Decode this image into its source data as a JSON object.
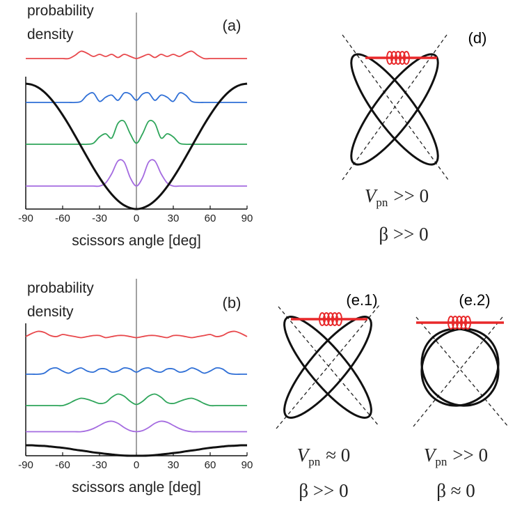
{
  "chart_data": [
    {
      "type": "line",
      "panel_label": "(a)",
      "ylabel": [
        "probability",
        "density"
      ],
      "xlabel": "scissors angle [deg]",
      "x": [
        -90,
        -85,
        -80,
        -75,
        -70,
        -65,
        -60,
        -55,
        -50,
        -45,
        -40,
        -35,
        -30,
        -25,
        -20,
        -15,
        -10,
        -5,
        0,
        5,
        10,
        15,
        20,
        25,
        30,
        35,
        40,
        45,
        50,
        55,
        60,
        65,
        70,
        75,
        80,
        85,
        90
      ],
      "xlim": [
        -90,
        90
      ],
      "xticks": [
        -90,
        -60,
        -30,
        0,
        30,
        60,
        90
      ],
      "ylim": [
        0,
        8
      ],
      "series": [
        {
          "color": "#e8474b",
          "values": [
            7.2,
            7.2,
            7.2,
            7.2,
            7.2,
            7.2,
            7.2,
            7.2,
            7.35,
            7.55,
            7.45,
            7.3,
            7.4,
            7.3,
            7.4,
            7.25,
            7.4,
            7.3,
            7.2,
            7.3,
            7.4,
            7.25,
            7.4,
            7.3,
            7.4,
            7.3,
            7.45,
            7.55,
            7.35,
            7.2,
            7.2,
            7.2,
            7.2,
            7.2,
            7.2,
            7.2,
            7.2
          ]
        },
        {
          "color": "#2f6fd6",
          "values": [
            5.1,
            5.1,
            5.1,
            5.1,
            5.1,
            5.1,
            5.1,
            5.1,
            5.1,
            5.15,
            5.45,
            5.55,
            5.15,
            5.35,
            5.45,
            5.2,
            5.55,
            5.5,
            5.2,
            5.5,
            5.55,
            5.2,
            5.45,
            5.35,
            5.15,
            5.55,
            5.45,
            5.15,
            5.1,
            5.1,
            5.1,
            5.1,
            5.1,
            5.1,
            5.1,
            5.1,
            5.1
          ]
        },
        {
          "color": "#2ea55a",
          "values": [
            3.1,
            3.1,
            3.1,
            3.1,
            3.1,
            3.1,
            3.1,
            3.1,
            3.1,
            3.1,
            3.1,
            3.15,
            3.45,
            3.6,
            3.4,
            4.1,
            4.2,
            3.6,
            3.15,
            3.6,
            4.2,
            4.1,
            3.4,
            3.6,
            3.45,
            3.15,
            3.1,
            3.1,
            3.1,
            3.1,
            3.1,
            3.1,
            3.1,
            3.1,
            3.1,
            3.1,
            3.1
          ]
        },
        {
          "color": "#a46be0",
          "values": [
            1.1,
            1.1,
            1.1,
            1.1,
            1.1,
            1.1,
            1.1,
            1.1,
            1.1,
            1.1,
            1.1,
            1.1,
            1.1,
            1.25,
            1.7,
            2.3,
            2.25,
            1.5,
            1.1,
            1.5,
            2.25,
            2.3,
            1.7,
            1.25,
            1.1,
            1.1,
            1.1,
            1.1,
            1.1,
            1.1,
            1.1,
            1.1,
            1.1,
            1.1,
            1.1,
            1.1,
            1.1
          ]
        },
        {
          "color": "#111111",
          "values": [
            6,
            5.95,
            5.82,
            5.6,
            5.3,
            4.93,
            4.5,
            4.03,
            3.52,
            3,
            2.48,
            1.97,
            1.5,
            1.07,
            0.7,
            0.4,
            0.18,
            0.05,
            0,
            0.05,
            0.18,
            0.4,
            0.7,
            1.07,
            1.5,
            1.97,
            2.48,
            3,
            3.52,
            4.03,
            4.5,
            4.93,
            5.3,
            5.6,
            5.82,
            5.95,
            6
          ]
        }
      ]
    },
    {
      "type": "line",
      "panel_label": "(b)",
      "ylabel": [
        "probability",
        "density"
      ],
      "xlabel": "scissors angle [deg]",
      "x": [
        -90,
        -85,
        -80,
        -75,
        -70,
        -65,
        -60,
        -55,
        -50,
        -45,
        -40,
        -35,
        -30,
        -25,
        -20,
        -15,
        -10,
        -5,
        0,
        5,
        10,
        15,
        20,
        25,
        30,
        35,
        40,
        45,
        50,
        55,
        60,
        65,
        70,
        75,
        80,
        85,
        90
      ],
      "xlim": [
        -90,
        90
      ],
      "xticks": [
        -90,
        -60,
        -30,
        0,
        30,
        60,
        90
      ],
      "ylim": [
        0,
        8
      ],
      "series": [
        {
          "color": "#e8474b",
          "values": [
            5.7,
            5.85,
            5.95,
            5.9,
            5.75,
            5.7,
            5.8,
            5.75,
            5.7,
            5.65,
            5.7,
            5.75,
            5.75,
            5.65,
            5.7,
            5.75,
            5.75,
            5.7,
            5.65,
            5.7,
            5.75,
            5.75,
            5.7,
            5.65,
            5.75,
            5.75,
            5.7,
            5.65,
            5.7,
            5.75,
            5.8,
            5.7,
            5.75,
            5.9,
            5.95,
            5.85,
            5.7
          ]
        },
        {
          "color": "#2f6fd6",
          "values": [
            3.9,
            3.9,
            3.9,
            3.95,
            4.15,
            4.2,
            4.05,
            3.95,
            4.1,
            4.2,
            4.05,
            4.0,
            4.15,
            4.15,
            4.0,
            4.05,
            4.2,
            4.15,
            4.0,
            4.15,
            4.2,
            4.05,
            4.0,
            4.15,
            4.15,
            4.0,
            4.05,
            4.2,
            4.1,
            3.95,
            4.05,
            4.2,
            4.15,
            3.95,
            3.9,
            3.9,
            3.9
          ]
        },
        {
          "color": "#2ea55a",
          "values": [
            2.4,
            2.4,
            2.4,
            2.4,
            2.4,
            2.4,
            2.4,
            2.5,
            2.65,
            2.75,
            2.7,
            2.6,
            2.5,
            2.55,
            2.8,
            2.95,
            2.85,
            2.6,
            2.45,
            2.6,
            2.85,
            2.95,
            2.8,
            2.55,
            2.5,
            2.6,
            2.7,
            2.75,
            2.65,
            2.5,
            2.4,
            2.4,
            2.4,
            2.4,
            2.4,
            2.4,
            2.4
          ]
        },
        {
          "color": "#a46be0",
          "values": [
            1.15,
            1.15,
            1.15,
            1.15,
            1.15,
            1.15,
            1.15,
            1.15,
            1.15,
            1.15,
            1.2,
            1.3,
            1.45,
            1.6,
            1.65,
            1.55,
            1.35,
            1.2,
            1.15,
            1.2,
            1.35,
            1.55,
            1.65,
            1.6,
            1.45,
            1.3,
            1.2,
            1.15,
            1.15,
            1.15,
            1.15,
            1.15,
            1.15,
            1.15,
            1.15,
            1.15,
            1.15
          ]
        },
        {
          "color": "#111111",
          "values": [
            0.5,
            0.5,
            0.48,
            0.47,
            0.44,
            0.41,
            0.38,
            0.34,
            0.29,
            0.25,
            0.21,
            0.16,
            0.13,
            0.09,
            0.06,
            0.03,
            0.01,
            0,
            0,
            0,
            0.01,
            0.03,
            0.06,
            0.09,
            0.13,
            0.16,
            0.21,
            0.25,
            0.29,
            0.34,
            0.38,
            0.41,
            0.44,
            0.47,
            0.48,
            0.5,
            0.5
          ]
        }
      ]
    }
  ],
  "diagrams": [
    {
      "label": "(d)",
      "potential": {
        "symbol": "V",
        "sub": "pn",
        "relation": ">> 0"
      },
      "beta": "β >> 0"
    },
    {
      "label": "(e.1)",
      "potential": {
        "symbol": "V",
        "sub": "pn",
        "relation": "≈ 0"
      },
      "beta": "β >> 0"
    },
    {
      "label": "(e.2)",
      "potential": {
        "symbol": "V",
        "sub": "pn",
        "relation": ">> 0"
      },
      "beta": "β ≈ 0"
    }
  ]
}
